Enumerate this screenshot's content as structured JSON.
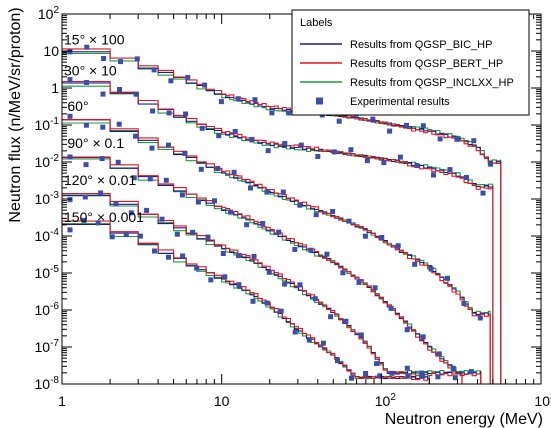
{
  "chart_data": {
    "type": "line",
    "xlabel": "Neutron energy (MeV)",
    "ylabel": "Neutron flux (n/MeV/sr/proton)",
    "xscale": "log",
    "yscale": "log",
    "xlim": [
      1,
      1000
    ],
    "ylim": [
      1e-08,
      100
    ],
    "x_ticks": [
      {
        "value": 1,
        "label": "1"
      },
      {
        "value": 10,
        "label": "10"
      },
      {
        "value": 100,
        "base": "10",
        "exp": "2"
      },
      {
        "value": 1000,
        "base": "10",
        "exp": "3"
      }
    ],
    "y_ticks": [
      {
        "value": 1e-08,
        "base": "10",
        "exp": "-8"
      },
      {
        "value": 1e-07,
        "base": "10",
        "exp": "-7"
      },
      {
        "value": 1e-06,
        "base": "10",
        "exp": "-6"
      },
      {
        "value": 1e-05,
        "base": "10",
        "exp": "-5"
      },
      {
        "value": 0.0001,
        "base": "10",
        "exp": "-4"
      },
      {
        "value": 0.001,
        "base": "10",
        "exp": "-3"
      },
      {
        "value": 0.01,
        "base": "10",
        "exp": "-2"
      },
      {
        "value": 0.1,
        "base": "10",
        "exp": "-1"
      },
      {
        "value": 1,
        "label": "1"
      },
      {
        "value": 10,
        "label": "10"
      },
      {
        "value": 100,
        "base": "10",
        "exp": "2"
      }
    ],
    "legend": {
      "title": "Labels",
      "position": "top-right",
      "entries": [
        {
          "label": "Results from QGSP_BIC_HP",
          "color": "#1a1a8c",
          "marker": "line"
        },
        {
          "label": "Results from QGSP_BERT_HP",
          "color": "#e8141c",
          "marker": "line"
        },
        {
          "label": "Results from QGSP_INCLXX_HP",
          "color": "#1a9e3c",
          "marker": "line"
        },
        {
          "label": "Experimental results",
          "color": "#3b4fa8",
          "marker": "square"
        }
      ]
    },
    "angle_labels": [
      {
        "text": "15° × 100",
        "at_x": 1.0,
        "at_y": 15
      },
      {
        "text": "30° × 10",
        "at_x": 1.0,
        "at_y": 2.2
      },
      {
        "text": "60°",
        "at_x": 1.05,
        "at_y": 0.24
      },
      {
        "text": "90° × 0.1",
        "at_x": 1.05,
        "at_y": 0.024
      },
      {
        "text": "120° × 0.01",
        "at_x": 1.0,
        "at_y": 0.0024
      },
      {
        "text": "150° × 0.001",
        "at_x": 1.0,
        "at_y": 0.00024
      }
    ],
    "series": [
      {
        "angle": "15°",
        "scale": 100,
        "emax": 560,
        "points": [
          [
            1.5,
            9.5
          ],
          [
            2.5,
            6.0
          ],
          [
            3.5,
            3.5
          ],
          [
            5,
            2.2
          ],
          [
            7,
            1.25
          ],
          [
            10,
            0.65
          ],
          [
            15,
            0.4
          ],
          [
            20,
            0.29
          ],
          [
            30,
            0.23
          ],
          [
            50,
            0.19
          ],
          [
            80,
            0.14
          ],
          [
            120,
            0.1
          ],
          [
            200,
            0.07
          ],
          [
            300,
            0.045
          ],
          [
            400,
            0.025
          ],
          [
            480,
            0.01
          ]
        ]
      },
      {
        "angle": "30°",
        "scale": 10,
        "emax": 500,
        "points": [
          [
            1.5,
            1.3
          ],
          [
            2.5,
            0.72
          ],
          [
            3.5,
            0.38
          ],
          [
            5,
            0.2
          ],
          [
            7,
            0.11
          ],
          [
            10,
            0.063
          ],
          [
            15,
            0.04
          ],
          [
            20,
            0.03
          ],
          [
            30,
            0.024
          ],
          [
            50,
            0.019
          ],
          [
            80,
            0.014
          ],
          [
            120,
            0.011
          ],
          [
            200,
            0.007
          ],
          [
            300,
            0.0045
          ],
          [
            400,
            0.0022
          ]
        ]
      },
      {
        "angle": "60°",
        "scale": 1,
        "emax": 480,
        "points": [
          [
            1.5,
            0.13
          ],
          [
            2.5,
            0.07
          ],
          [
            3.5,
            0.037
          ],
          [
            5,
            0.02
          ],
          [
            7,
            0.011
          ],
          [
            10,
            0.0055
          ],
          [
            15,
            0.0028
          ],
          [
            20,
            0.0016
          ],
          [
            30,
            0.0008
          ],
          [
            50,
            0.00035
          ],
          [
            80,
            0.00015
          ],
          [
            120,
            5e-05
          ],
          [
            200,
            1.5e-05
          ],
          [
            300,
            3e-06
          ],
          [
            380,
            8e-07
          ]
        ]
      },
      {
        "angle": "90°",
        "scale": 0.1,
        "emax": 420,
        "points": [
          [
            1.5,
            0.013
          ],
          [
            2.5,
            0.007
          ],
          [
            3.5,
            0.0037
          ],
          [
            5,
            0.002
          ],
          [
            7,
            0.0011
          ],
          [
            10,
            0.00055
          ],
          [
            15,
            0.00028
          ],
          [
            20,
            0.00014
          ],
          [
            30,
            6e-05
          ],
          [
            50,
            2e-05
          ],
          [
            80,
            5e-06
          ],
          [
            120,
            1e-06
          ],
          [
            200,
            1e-07
          ],
          [
            300,
            2e-08
          ]
        ]
      },
      {
        "angle": "120°",
        "scale": 0.01,
        "emax": 320,
        "points": [
          [
            1.5,
            0.0013
          ],
          [
            2.5,
            0.0007
          ],
          [
            3.5,
            0.00036
          ],
          [
            5,
            0.00019
          ],
          [
            7,
            0.0001
          ],
          [
            10,
            5e-05
          ],
          [
            15,
            2.4e-05
          ],
          [
            20,
            1.2e-05
          ],
          [
            30,
            4e-06
          ],
          [
            50,
            9e-07
          ],
          [
            80,
            1.3e-07
          ],
          [
            110,
            2e-08
          ]
        ]
      },
      {
        "angle": "150°",
        "scale": 0.001,
        "emax": 200,
        "points": [
          [
            1.5,
            0.00022
          ],
          [
            2.5,
            0.00011
          ],
          [
            3.5,
            6e-05
          ],
          [
            5,
            2.8e-05
          ],
          [
            7,
            1.4e-05
          ],
          [
            10,
            7e-06
          ],
          [
            15,
            3e-06
          ],
          [
            20,
            1.3e-06
          ],
          [
            30,
            3e-07
          ],
          [
            50,
            6e-08
          ],
          [
            70,
            1.5e-08
          ]
        ]
      }
    ]
  }
}
